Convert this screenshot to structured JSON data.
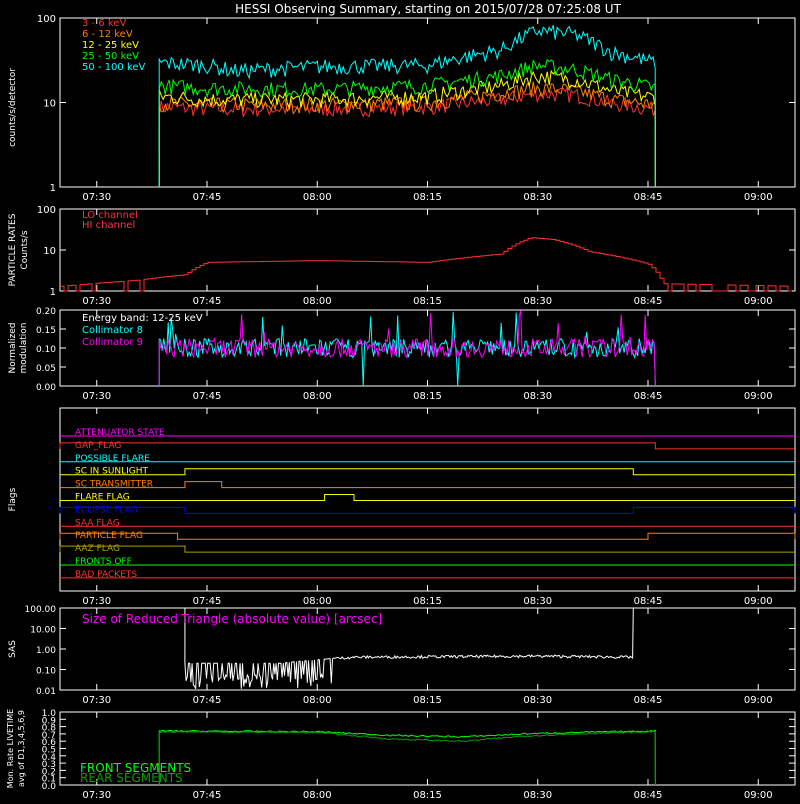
{
  "title": "HESSI Observing Summary, starting on 2015/07/28 07:25:08 UT",
  "colors": {
    "background": "#000000",
    "axes": "#ffffff",
    "red": "#ff3030",
    "orange": "#ff8000",
    "yellow": "#ffff00",
    "green": "#00ff00",
    "cyan": "#00ffff",
    "magenta": "#ff00ff",
    "blue": "#0000ff",
    "olive": "#b0a000",
    "darkgreen": "#00a000",
    "white": "#ffffff"
  },
  "time_axis": {
    "range": [
      "07:25",
      "09:05"
    ],
    "tick_labels": [
      "07:30",
      "07:45",
      "08:00",
      "08:15",
      "08:30",
      "08:45",
      "09:00"
    ]
  },
  "chart_data": [
    {
      "type": "line",
      "name_key": "count_rates",
      "ylabel": "counts/s/detector",
      "yscale": "log",
      "ylim": [
        1,
        100
      ],
      "ytick_labels": [
        "1",
        "10",
        "100"
      ],
      "legend_position": "top-left",
      "series": [
        {
          "name": "3 - 6 keV",
          "color": "#ff3030",
          "x": [
            "07:38:30",
            "07:45",
            "08:00",
            "08:15",
            "08:25",
            "08:30",
            "08:35",
            "08:40",
            "08:46"
          ],
          "y": [
            9,
            8.5,
            8.5,
            9,
            11,
            13,
            12.5,
            10,
            8.5
          ]
        },
        {
          "name": "6 - 12 keV",
          "color": "#ff8000",
          "x": [
            "07:38:30",
            "07:45",
            "08:00",
            "08:15",
            "08:25",
            "08:30",
            "08:35",
            "08:40",
            "08:46"
          ],
          "y": [
            10,
            9.5,
            9.5,
            10,
            13,
            15,
            14,
            11,
            9.5
          ]
        },
        {
          "name": "12 - 25 keV",
          "color": "#ffff00",
          "x": [
            "07:38:30",
            "07:45",
            "08:00",
            "08:15",
            "08:25",
            "08:30",
            "08:35",
            "08:40",
            "08:46"
          ],
          "y": [
            12,
            11,
            11,
            12,
            16,
            21,
            19,
            14,
            11.5
          ]
        },
        {
          "name": "25 - 50 keV",
          "color": "#00ff00",
          "x": [
            "07:38:30",
            "07:45",
            "08:00",
            "08:15",
            "08:25",
            "08:30",
            "08:35",
            "08:40",
            "08:46"
          ],
          "y": [
            16,
            15,
            14.5,
            16,
            21,
            28,
            25,
            19,
            15
          ]
        },
        {
          "name": "50 - 100 keV",
          "color": "#00ffff",
          "x": [
            "07:38:30",
            "07:45",
            "07:49",
            "08:00",
            "08:15",
            "08:25",
            "08:30",
            "08:35",
            "08:40",
            "08:46"
          ],
          "y": [
            30,
            28,
            24,
            27,
            28,
            42,
            72,
            65,
            40,
            30
          ]
        }
      ]
    },
    {
      "type": "line",
      "name_key": "particle_rates",
      "ylabel": "PARTICLE RATES Counts/s",
      "yscale": "log",
      "ylim": [
        1,
        100
      ],
      "ytick_labels": [
        "1",
        "10",
        "100"
      ],
      "legend_position": "top-left",
      "series": [
        {
          "name": "LO channel",
          "color": "#ff3030",
          "x": [
            "07:25",
            "07:31",
            "07:35",
            "07:42",
            "07:45",
            "08:00",
            "08:15",
            "08:25",
            "08:29",
            "08:32",
            "08:37",
            "08:45",
            "08:47",
            "09:05"
          ],
          "y": [
            1.3,
            1.6,
            1.8,
            2.5,
            5,
            5.5,
            5,
            8,
            20,
            18,
            9,
            4.5,
            1.5,
            1.3
          ]
        },
        {
          "name": "HI channel",
          "color": "#ff3050",
          "x": [],
          "y": []
        }
      ]
    },
    {
      "type": "line",
      "name_key": "modulation",
      "ylabel": "Normalized modulation",
      "ylim": [
        0,
        0.2
      ],
      "ytick_labels": [
        "0.00",
        "0.05",
        "0.10",
        "0.15",
        "0.20"
      ],
      "legend_position": "top-left",
      "energy_band": "Energy band: 12-25 keV",
      "series": [
        {
          "name": "Collimator 8",
          "color": "#00ffff",
          "x": [
            "07:38:30",
            "08:46"
          ],
          "y": [
            0.1,
            0.1
          ]
        },
        {
          "name": "Collimator 9",
          "color": "#ff00ff",
          "x": [
            "07:38:30",
            "08:46"
          ],
          "y": [
            0.1,
            0.1
          ]
        }
      ]
    }
  ],
  "flags_panel": {
    "ylabel": "Flags",
    "flags": [
      {
        "name": "ATTENUATOR STATE",
        "color": "#ff00ff",
        "high": []
      },
      {
        "name": "GAP_FLAG",
        "color": "#ff3030",
        "high": [
          [
            "07:25",
            "08:46"
          ]
        ]
      },
      {
        "name": "POSSIBLE FLARE",
        "color": "#00ffff",
        "high": []
      },
      {
        "name": "SC IN SUNLIGHT",
        "color": "#ffff00",
        "high": [
          [
            "07:42",
            "08:43"
          ]
        ]
      },
      {
        "name": "SC TRANSMITTER",
        "color": "#ff8000",
        "high": [
          [
            "07:42",
            "07:47"
          ]
        ]
      },
      {
        "name": "FLARE FLAG",
        "color": "#ffff00",
        "high": [
          [
            "08:01",
            "08:05"
          ]
        ]
      },
      {
        "name": "ECLIPSE FLAG",
        "color": "#0000ff",
        "high": [
          [
            "07:25",
            "07:42"
          ],
          [
            "08:43",
            "09:05"
          ]
        ]
      },
      {
        "name": "SAA FLAG",
        "color": "#ff3030",
        "high": []
      },
      {
        "name": "PARTICLE FLAG",
        "color": "#ff8000",
        "high": [
          [
            "07:25",
            "07:41"
          ],
          [
            "08:45",
            "09:05"
          ]
        ]
      },
      {
        "name": "AAZ FLAG",
        "color": "#b0a000",
        "high": [
          [
            "07:25",
            "07:42"
          ]
        ]
      },
      {
        "name": "FRONTS OFF",
        "color": "#00ff00",
        "high": []
      },
      {
        "name": "BAD PACKETS",
        "color": "#ff3030",
        "high": []
      }
    ]
  },
  "sas_panel": {
    "ylabel": "SAS",
    "label": "Size of Reduced Triangle (absolute value) [arcsec]",
    "yscale": "log",
    "ylim": [
      0.01,
      100
    ],
    "ytick_labels": [
      "0.01",
      "0.10",
      "1.00",
      "10.00",
      "100.00"
    ],
    "series": {
      "x": [
        "07:42",
        "07:45",
        "07:55",
        "08:00",
        "08:05",
        "08:30",
        "08:43"
      ],
      "y": [
        0.2,
        0.2,
        0.2,
        0.3,
        0.4,
        0.45,
        0.4
      ]
    }
  },
  "livetime_panel": {
    "ylabel": "Mon. Rate LIVETIME avg of D1,3,4,5,6,9",
    "ylim": [
      0,
      1
    ],
    "ytick_labels": [
      "0.0",
      "0.1",
      "0.2",
      "0.3",
      "0.4",
      "0.5",
      "0.6",
      "0.7",
      "0.8",
      "0.9",
      "1.0"
    ],
    "series": [
      {
        "name": "FRONT SEGMENTS",
        "color": "#00ff00",
        "x": [
          "07:38:30",
          "08:00",
          "08:10",
          "08:20",
          "08:28",
          "08:35",
          "08:46"
        ],
        "y": [
          0.74,
          0.73,
          0.68,
          0.66,
          0.7,
          0.72,
          0.74
        ]
      },
      {
        "name": "REAR SEGMENTS",
        "color": "#00a000",
        "x": [
          "07:38:30",
          "08:00",
          "08:10",
          "08:20",
          "08:28",
          "08:35",
          "08:46"
        ],
        "y": [
          0.73,
          0.72,
          0.63,
          0.6,
          0.67,
          0.7,
          0.73
        ]
      }
    ]
  }
}
